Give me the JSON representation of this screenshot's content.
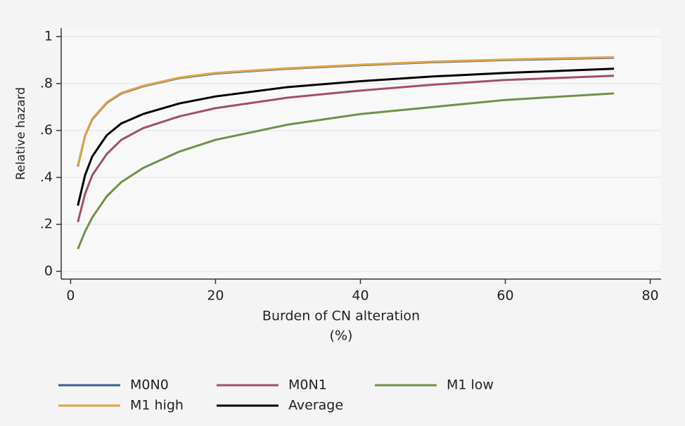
{
  "chart_data": {
    "type": "line",
    "ylabel": "Relative hazard",
    "xlabel": [
      "Burden of CN alteration",
      "(%)"
    ],
    "x": [
      1,
      2,
      3,
      5,
      7,
      10,
      15,
      20,
      30,
      40,
      50,
      60,
      75
    ],
    "series": [
      {
        "name": "M0N0",
        "color": "#3d5f8c",
        "values": [
          0.447,
          0.578,
          0.648,
          0.718,
          0.758,
          0.788,
          0.823,
          0.843,
          0.863,
          0.878,
          0.891,
          0.9,
          0.91
        ]
      },
      {
        "name": "M0N1",
        "color": "#a34f66",
        "values": [
          0.21,
          0.33,
          0.41,
          0.5,
          0.56,
          0.61,
          0.66,
          0.695,
          0.74,
          0.77,
          0.795,
          0.815,
          0.833
        ]
      },
      {
        "name": "M1 low",
        "color": "#6e9249",
        "values": [
          0.095,
          0.17,
          0.23,
          0.32,
          0.38,
          0.44,
          0.51,
          0.56,
          0.625,
          0.67,
          0.7,
          0.73,
          0.758
        ]
      },
      {
        "name": "M1 high",
        "color": "#e2a245",
        "values": [
          0.45,
          0.58,
          0.65,
          0.72,
          0.76,
          0.79,
          0.825,
          0.845,
          0.865,
          0.88,
          0.893,
          0.902,
          0.912
        ]
      },
      {
        "name": "Average",
        "color": "#000000",
        "values": [
          0.28,
          0.41,
          0.49,
          0.58,
          0.63,
          0.67,
          0.715,
          0.745,
          0.785,
          0.81,
          0.83,
          0.845,
          0.863
        ]
      }
    ],
    "xlim": [
      -1.3,
      81.5
    ],
    "xticks": [
      0,
      20,
      40,
      60,
      80
    ],
    "ylim": [
      -0.033,
      1.036
    ],
    "yticks": [
      0,
      {
        "value": 0.2,
        "label": ".2"
      },
      {
        "value": 0.4,
        "label": ".4"
      },
      {
        "value": 0.6,
        "label": ".6"
      },
      {
        "value": 0.8,
        "label": ".8"
      },
      1
    ],
    "grid": true
  }
}
